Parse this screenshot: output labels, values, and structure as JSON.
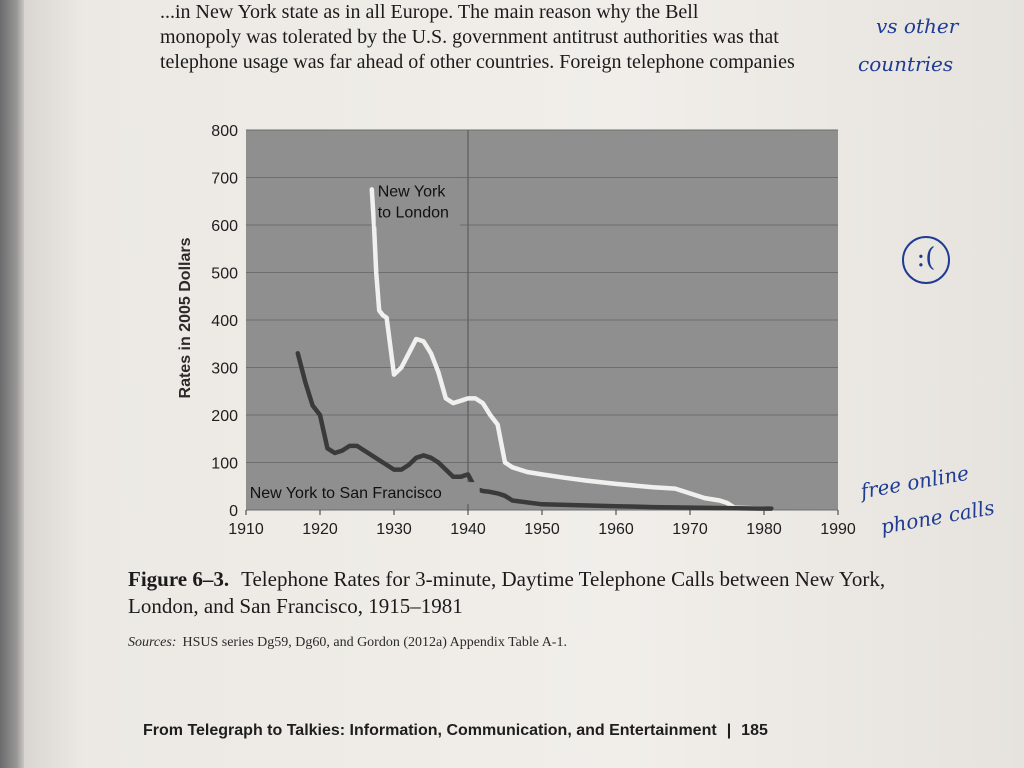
{
  "body_text": {
    "line1": "...in New York state as in all Europe. The main reason why the Bell",
    "line2": "monopoly was tolerated by the U.S. government antitrust authorities was that",
    "line3": "telephone usage was far ahead of other countries. Foreign telephone companies"
  },
  "chart_data": {
    "type": "line",
    "title": "",
    "xlabel": "",
    "ylabel": "Rates in 2005 Dollars",
    "xlim": [
      1910,
      1990
    ],
    "ylim": [
      0,
      800
    ],
    "x_ticks": [
      1910,
      1920,
      1930,
      1940,
      1950,
      1960,
      1970,
      1980,
      1990
    ],
    "y_ticks": [
      0,
      100,
      200,
      300,
      400,
      500,
      600,
      700,
      800
    ],
    "grid": true,
    "vertical_marker": 1940,
    "series": [
      {
        "name": "New York to London",
        "label_lines": [
          "New York",
          "to London"
        ],
        "color": "#f0f0ee",
        "x": [
          1927,
          1927.3,
          1927.6,
          1928,
          1928.5,
          1929,
          1930,
          1931,
          1932,
          1933,
          1934,
          1935,
          1936,
          1937,
          1938,
          1939,
          1940,
          1941,
          1942,
          1943,
          1944,
          1945,
          1946,
          1948,
          1950,
          1953,
          1956,
          1960,
          1965,
          1968,
          1970,
          1972,
          1974,
          1975,
          1976,
          1978,
          1980,
          1981
        ],
        "y": [
          675,
          600,
          500,
          420,
          410,
          405,
          285,
          300,
          330,
          360,
          355,
          330,
          290,
          235,
          225,
          230,
          235,
          235,
          225,
          200,
          180,
          100,
          90,
          80,
          75,
          68,
          62,
          55,
          48,
          45,
          35,
          25,
          20,
          15,
          5,
          4,
          3,
          2
        ]
      },
      {
        "name": "New York to San Francisco",
        "label_lines": [
          "New York to San Francisco"
        ],
        "color": "#3a3a3a",
        "x": [
          1917,
          1918,
          1919,
          1920,
          1921,
          1922,
          1923,
          1924,
          1925,
          1926,
          1927,
          1928,
          1930,
          1931,
          1932,
          1933,
          1934,
          1935,
          1936,
          1937,
          1938,
          1939,
          1940,
          1941,
          1942,
          1943,
          1944,
          1945,
          1946,
          1950,
          1955,
          1960,
          1965,
          1970,
          1975,
          1980,
          1981
        ],
        "y": [
          330,
          270,
          220,
          200,
          130,
          120,
          125,
          135,
          135,
          125,
          115,
          105,
          85,
          85,
          95,
          110,
          115,
          110,
          100,
          85,
          70,
          70,
          75,
          45,
          40,
          38,
          35,
          30,
          20,
          12,
          10,
          8,
          6,
          5,
          4,
          3,
          3
        ]
      }
    ]
  },
  "caption": {
    "figure_number": "Figure 6–3.",
    "title": "Telephone Rates for 3-minute, Daytime Telephone Calls between New York, London, and San Francisco, 1915–1981"
  },
  "sources": {
    "label": "Sources:",
    "text": "HSUS series Dg59, Dg60, and Gordon (2012a) Appendix Table A-1."
  },
  "footer": {
    "running_head": "From Telegraph to Talkies: Information, Communication, and Entertainment",
    "separator": "|",
    "page_number": "185"
  },
  "handwriting": {
    "top_right_1": "vs other",
    "top_right_2": "countries",
    "margin_note_1": "free online",
    "margin_note_2": "phone calls",
    "face_symbol": ":("
  },
  "colors": {
    "plot_background": "#8f8f8f",
    "grid": "#6e6e6e",
    "page": "#efece7",
    "ink_blue": "#1f3b93"
  }
}
